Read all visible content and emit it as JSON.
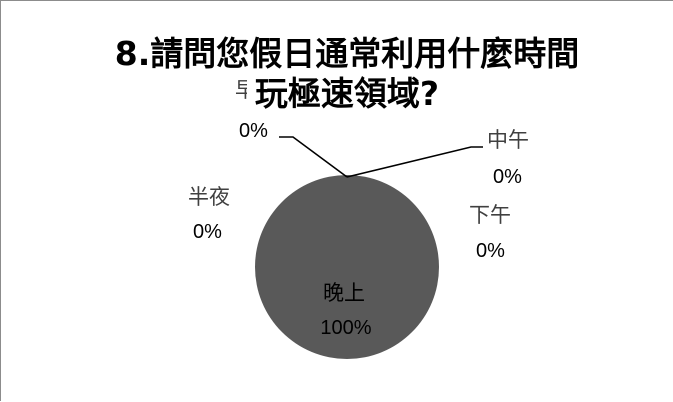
{
  "chart_data": {
    "type": "pie",
    "title_line1": "8.請問您假日通常利用什麼時間",
    "title_line2": "玩極速領域?",
    "slices": [
      {
        "label": "早上",
        "value": 0,
        "percent_label": "0%"
      },
      {
        "label": "中午",
        "value": 0,
        "percent_label": "0%"
      },
      {
        "label": "下午",
        "value": 0,
        "percent_label": "0%"
      },
      {
        "label": "晚上",
        "value": 100,
        "percent_label": "100%"
      },
      {
        "label": "半夜",
        "value": 0,
        "percent_label": "0%"
      }
    ],
    "legend": "none",
    "slice_color": "#595959"
  }
}
